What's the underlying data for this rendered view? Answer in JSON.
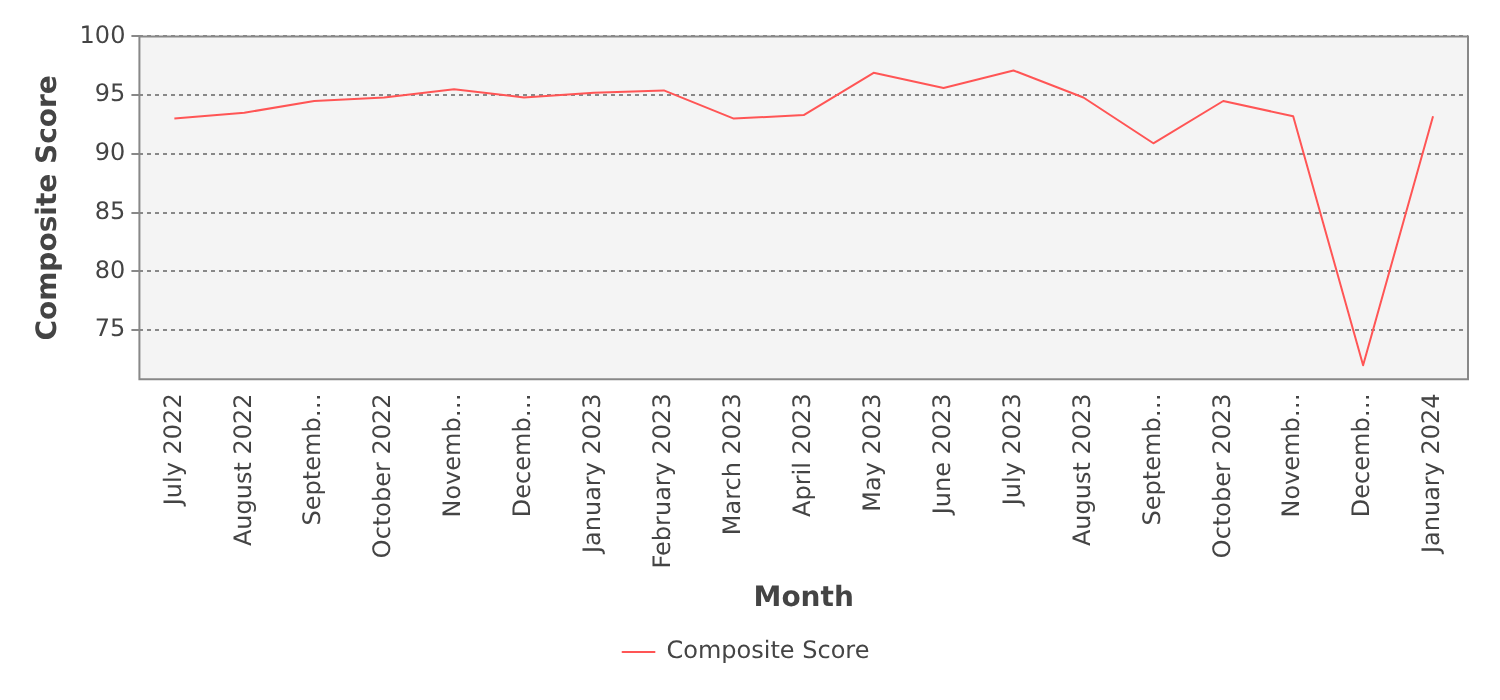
{
  "chart_data": {
    "type": "line",
    "xlabel": "Month",
    "ylabel": "Composite Score",
    "categories": [
      "July 2022",
      "August 2022",
      "Septemb…",
      "October 2022",
      "Novemb…",
      "Decemb…",
      "January 2023",
      "February 2023",
      "March 2023",
      "April 2023",
      "May 2023",
      "June 2023",
      "July 2023",
      "August 2023",
      "Septemb…",
      "October 2023",
      "Novemb…",
      "Decemb…",
      "January 2024"
    ],
    "series": [
      {
        "name": "Composite Score",
        "color": "#ff5555",
        "values": [
          93.0,
          93.5,
          94.5,
          94.8,
          95.5,
          94.8,
          95.2,
          95.4,
          93.0,
          93.3,
          96.9,
          95.6,
          97.1,
          94.8,
          90.9,
          94.5,
          93.2,
          72.0,
          93.2
        ]
      }
    ],
    "ylim": [
      70.8,
      100
    ],
    "yticks": [
      75,
      80,
      85,
      90,
      95,
      100
    ],
    "grid": "y",
    "legend": "bottom",
    "marker": "none",
    "line_style": "solid"
  }
}
